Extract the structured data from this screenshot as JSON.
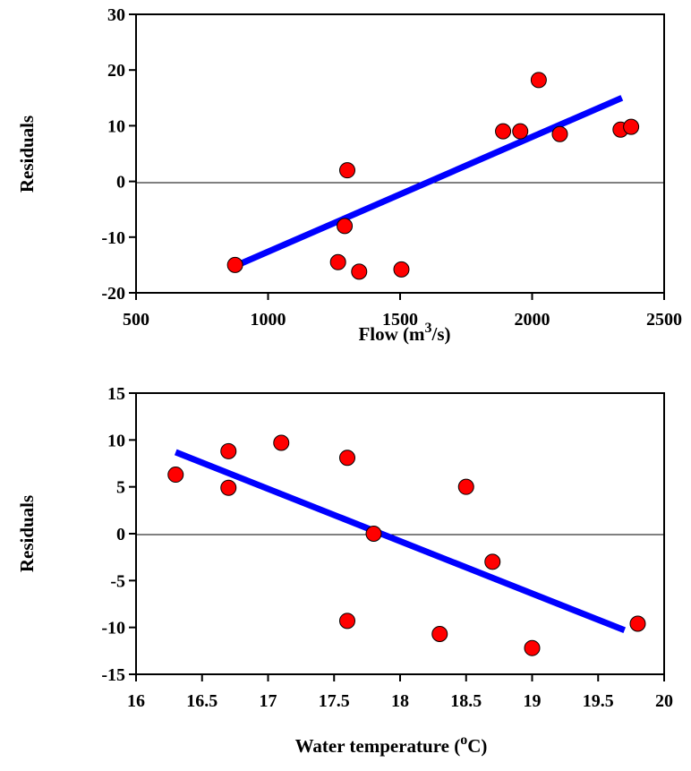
{
  "chart_data": [
    {
      "type": "scatter",
      "title": "",
      "xlabel_main": "Flow (m",
      "xlabel_sup": "3",
      "xlabel_tail": "/s)",
      "ylabel": "Residuals",
      "xlim": [
        500,
        2500
      ],
      "ylim": [
        -20,
        30
      ],
      "xticks": [
        500,
        1000,
        1500,
        2000,
        2500
      ],
      "yticks": [
        -20,
        -10,
        0,
        10,
        20,
        30
      ],
      "points": [
        {
          "x": 875,
          "y": -15
        },
        {
          "x": 1265,
          "y": -14.5
        },
        {
          "x": 1290,
          "y": -8
        },
        {
          "x": 1300,
          "y": 2
        },
        {
          "x": 1345,
          "y": -16.2
        },
        {
          "x": 1505,
          "y": -15.8
        },
        {
          "x": 1890,
          "y": 9
        },
        {
          "x": 1955,
          "y": 9
        },
        {
          "x": 2025,
          "y": 18.2
        },
        {
          "x": 2105,
          "y": 8.5
        },
        {
          "x": 2335,
          "y": 9.3
        },
        {
          "x": 2375,
          "y": 9.8
        }
      ],
      "trendline": {
        "x": [
          875,
          2340
        ],
        "y": [
          -15.2,
          15
        ]
      },
      "zero_line": true,
      "grid": false,
      "colors": {
        "points": "#ff0000",
        "trendline": "#0000ff"
      }
    },
    {
      "type": "scatter",
      "title": "",
      "xlabel_main": "Water temperature (",
      "xlabel_sup": "o",
      "xlabel_tail": "C)",
      "ylabel": "Residuals",
      "xlim": [
        16,
        20
      ],
      "ylim": [
        -15,
        15
      ],
      "xticks": [
        16,
        16.5,
        17,
        17.5,
        18,
        18.5,
        19,
        19.5,
        20
      ],
      "yticks": [
        -15,
        -10,
        -5,
        0,
        5,
        10,
        15
      ],
      "points": [
        {
          "x": 16.3,
          "y": 6.3
        },
        {
          "x": 16.7,
          "y": 8.8
        },
        {
          "x": 16.7,
          "y": 4.9
        },
        {
          "x": 17.1,
          "y": 9.7
        },
        {
          "x": 17.6,
          "y": 8.1
        },
        {
          "x": 17.6,
          "y": -9.3
        },
        {
          "x": 17.8,
          "y": 0
        },
        {
          "x": 18.3,
          "y": -10.7
        },
        {
          "x": 18.5,
          "y": 5
        },
        {
          "x": 18.7,
          "y": -3
        },
        {
          "x": 19.0,
          "y": -12.2
        },
        {
          "x": 19.8,
          "y": -9.6
        }
      ],
      "trendline": {
        "x": [
          16.3,
          19.7
        ],
        "y": [
          8.7,
          -10.3
        ]
      },
      "zero_line": true,
      "grid": false,
      "colors": {
        "points": "#ff0000",
        "trendline": "#0000ff"
      }
    }
  ]
}
